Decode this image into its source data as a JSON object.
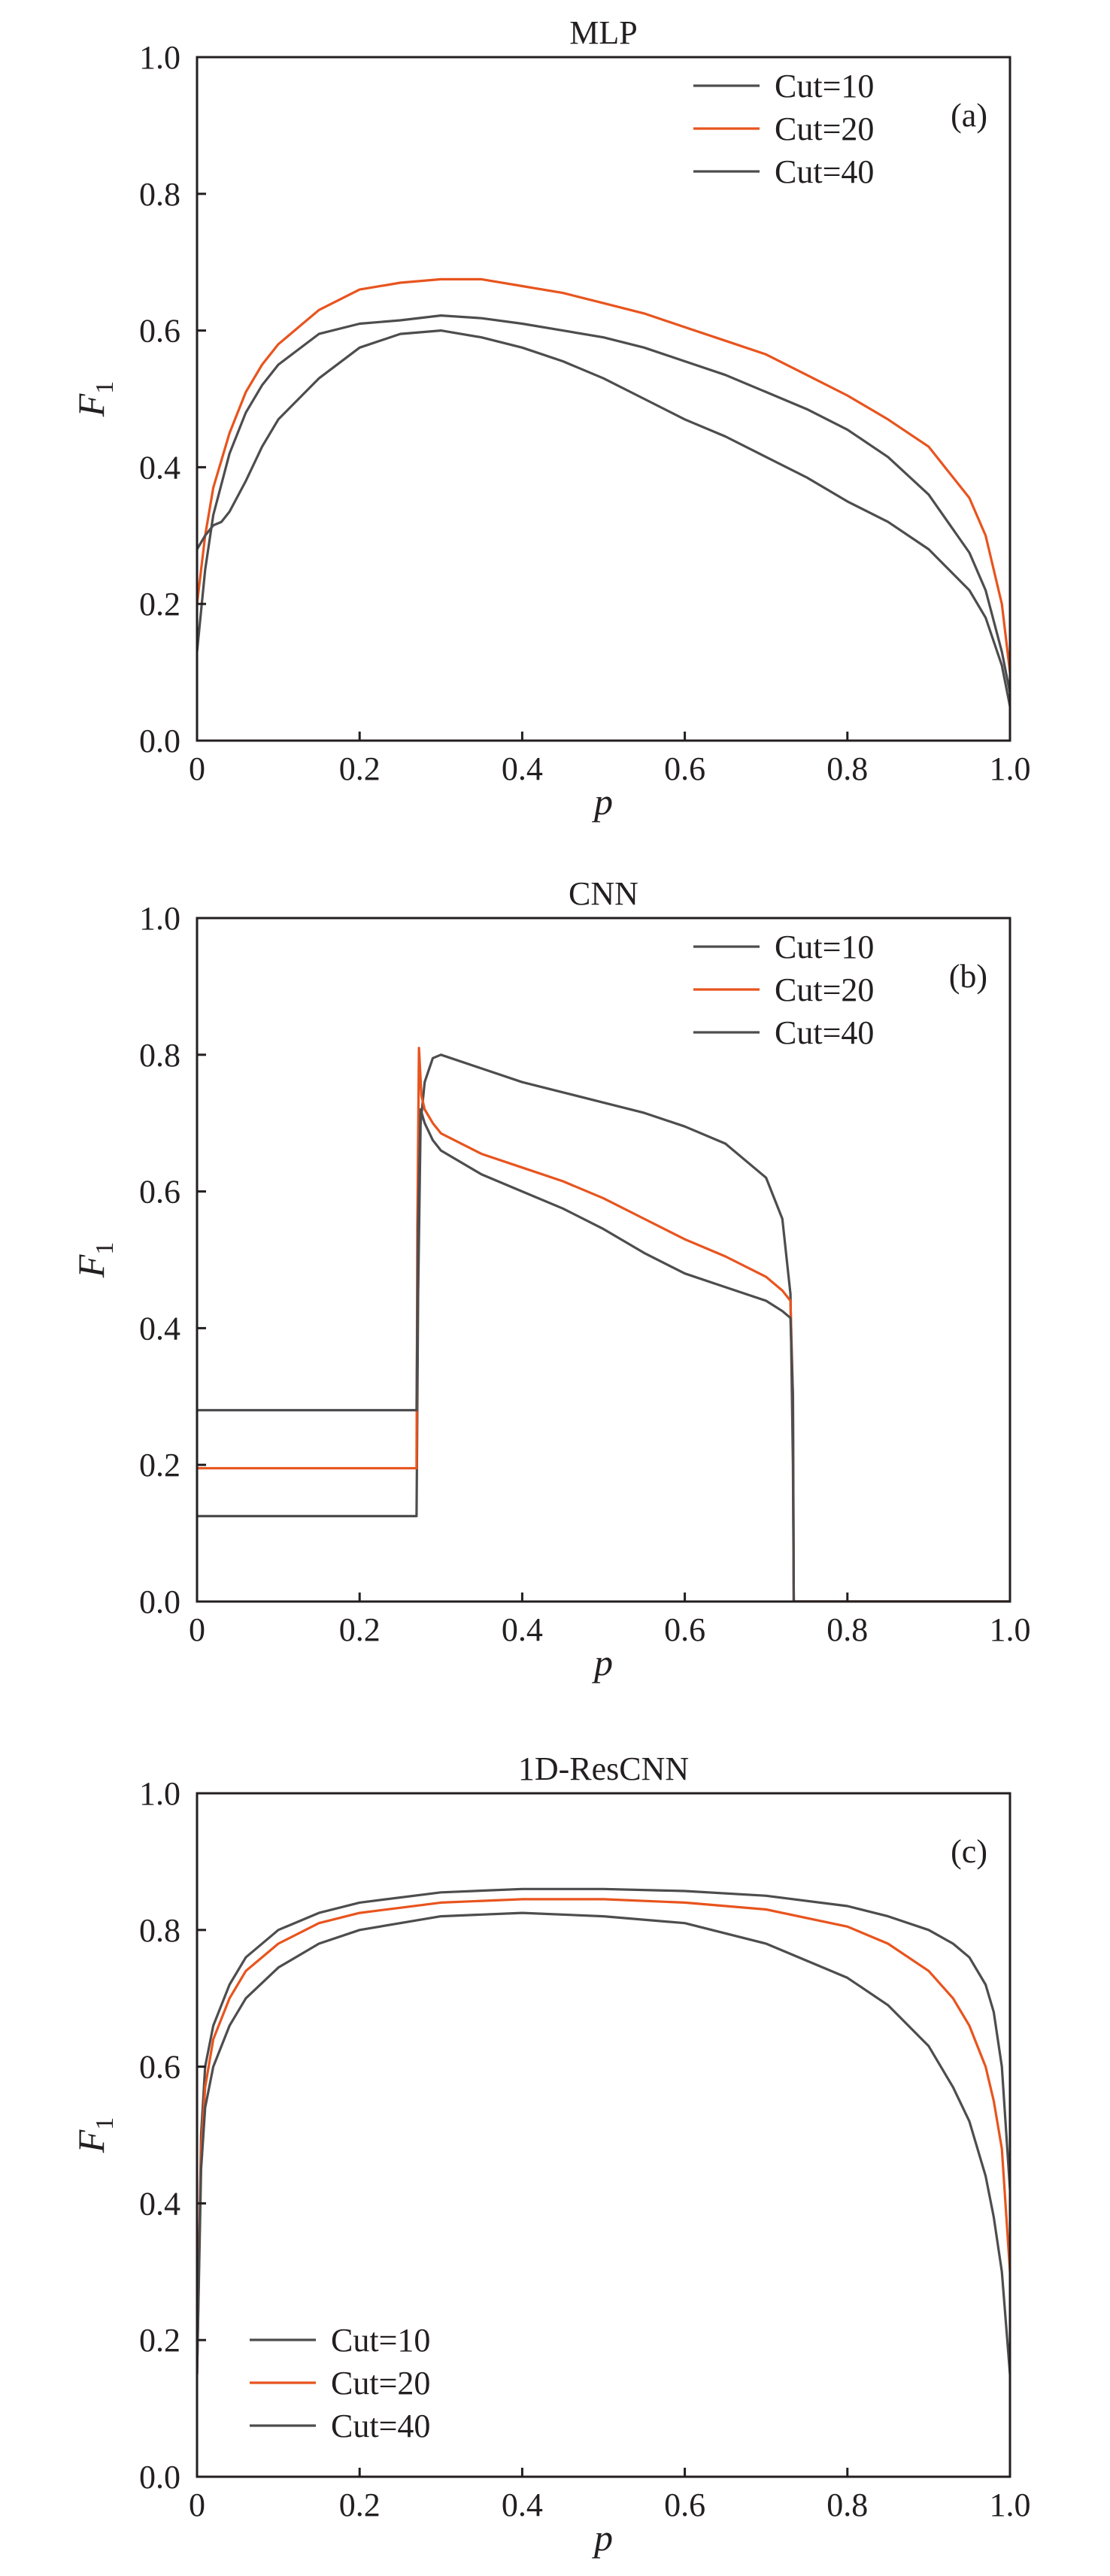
{
  "chart_data": [
    {
      "type": "line",
      "title": "MLP",
      "panel_label": "(a)",
      "xlabel": "p",
      "ylabel_base": "F",
      "ylabel_sub": "1",
      "xlim": [
        0,
        1
      ],
      "ylim": [
        0,
        1
      ],
      "xticks": [
        "0",
        "0.2",
        "0.4",
        "0.6",
        "0.8",
        "1.0"
      ],
      "yticks": [
        "0.0",
        "0.2",
        "0.4",
        "0.6",
        "0.8",
        "1.0"
      ],
      "legend_position": "top-right",
      "series": [
        {
          "name": "Cut=10",
          "color": "#4d4d4f",
          "x": [
            0,
            0.01,
            0.02,
            0.04,
            0.06,
            0.08,
            0.1,
            0.15,
            0.2,
            0.25,
            0.3,
            0.35,
            0.4,
            0.45,
            0.5,
            0.55,
            0.6,
            0.65,
            0.7,
            0.75,
            0.8,
            0.85,
            0.9,
            0.95,
            0.97,
            0.99,
            1.0
          ],
          "y": [
            0.13,
            0.25,
            0.33,
            0.42,
            0.48,
            0.52,
            0.55,
            0.595,
            0.61,
            0.615,
            0.622,
            0.618,
            0.61,
            0.6,
            0.59,
            0.575,
            0.555,
            0.535,
            0.51,
            0.485,
            0.455,
            0.415,
            0.36,
            0.275,
            0.22,
            0.13,
            0.07
          ]
        },
        {
          "name": "Cut=20",
          "color": "#e8541e",
          "x": [
            0,
            0.01,
            0.02,
            0.04,
            0.06,
            0.08,
            0.1,
            0.15,
            0.2,
            0.25,
            0.3,
            0.35,
            0.4,
            0.45,
            0.5,
            0.55,
            0.6,
            0.65,
            0.7,
            0.75,
            0.8,
            0.85,
            0.9,
            0.95,
            0.97,
            0.99,
            1.0
          ],
          "y": [
            0.2,
            0.3,
            0.37,
            0.45,
            0.51,
            0.55,
            0.58,
            0.63,
            0.66,
            0.67,
            0.675,
            0.675,
            0.665,
            0.655,
            0.64,
            0.625,
            0.605,
            0.585,
            0.565,
            0.535,
            0.505,
            0.47,
            0.43,
            0.355,
            0.3,
            0.2,
            0.1
          ]
        },
        {
          "name": "Cut=40",
          "color": "#4d4d4f",
          "x": [
            0,
            0.01,
            0.02,
            0.03,
            0.04,
            0.06,
            0.08,
            0.1,
            0.15,
            0.2,
            0.25,
            0.3,
            0.35,
            0.4,
            0.45,
            0.5,
            0.55,
            0.6,
            0.65,
            0.7,
            0.75,
            0.8,
            0.85,
            0.9,
            0.95,
            0.97,
            0.99,
            1.0
          ],
          "y": [
            0.28,
            0.3,
            0.315,
            0.32,
            0.335,
            0.38,
            0.43,
            0.47,
            0.53,
            0.575,
            0.595,
            0.6,
            0.59,
            0.575,
            0.555,
            0.53,
            0.5,
            0.47,
            0.445,
            0.415,
            0.385,
            0.35,
            0.32,
            0.28,
            0.22,
            0.18,
            0.11,
            0.05
          ]
        }
      ]
    },
    {
      "type": "line",
      "title": "CNN",
      "panel_label": "(b)",
      "xlabel": "p",
      "ylabel_base": "F",
      "ylabel_sub": "1",
      "xlim": [
        0,
        1
      ],
      "ylim": [
        0,
        1
      ],
      "xticks": [
        "0",
        "0.2",
        "0.4",
        "0.6",
        "0.8",
        "1.0"
      ],
      "yticks": [
        "0.0",
        "0.2",
        "0.4",
        "0.6",
        "0.8",
        "1.0"
      ],
      "legend_position": "top-right",
      "series": [
        {
          "name": "Cut=10",
          "color": "#4d4d4f",
          "x": [
            0,
            0.27,
            0.272,
            0.275,
            0.28,
            0.29,
            0.3,
            0.35,
            0.4,
            0.45,
            0.5,
            0.55,
            0.6,
            0.65,
            0.7,
            0.72,
            0.73,
            0.733,
            0.734,
            1.0
          ],
          "y": [
            0.125,
            0.125,
            0.45,
            0.7,
            0.76,
            0.795,
            0.8,
            0.78,
            0.76,
            0.745,
            0.73,
            0.715,
            0.695,
            0.67,
            0.62,
            0.56,
            0.45,
            0.2,
            0.0,
            0.0
          ]
        },
        {
          "name": "Cut=20",
          "color": "#e8541e",
          "x": [
            0,
            0.27,
            0.271,
            0.273,
            0.276,
            0.28,
            0.29,
            0.3,
            0.35,
            0.4,
            0.45,
            0.5,
            0.55,
            0.6,
            0.65,
            0.7,
            0.72,
            0.73,
            0.733,
            0.734,
            1.0
          ],
          "y": [
            0.195,
            0.195,
            0.55,
            0.81,
            0.74,
            0.72,
            0.7,
            0.685,
            0.655,
            0.635,
            0.615,
            0.59,
            0.56,
            0.53,
            0.505,
            0.475,
            0.455,
            0.44,
            0.3,
            0.0,
            0.0
          ]
        },
        {
          "name": "Cut=40",
          "color": "#4d4d4f",
          "x": [
            0,
            0.27,
            0.272,
            0.275,
            0.28,
            0.29,
            0.3,
            0.35,
            0.4,
            0.45,
            0.5,
            0.55,
            0.6,
            0.65,
            0.7,
            0.72,
            0.73,
            0.733,
            0.734,
            1.0
          ],
          "y": [
            0.28,
            0.28,
            0.55,
            0.72,
            0.7,
            0.675,
            0.66,
            0.625,
            0.6,
            0.575,
            0.545,
            0.51,
            0.48,
            0.46,
            0.44,
            0.425,
            0.415,
            0.3,
            0.0,
            0.0
          ]
        }
      ]
    },
    {
      "type": "line",
      "title": "1D-ResCNN",
      "panel_label": "(c)",
      "xlabel": "p",
      "ylabel_base": "F",
      "ylabel_sub": "1",
      "xlim": [
        0,
        1
      ],
      "ylim": [
        0,
        1
      ],
      "xticks": [
        "0",
        "0.2",
        "0.4",
        "0.6",
        "0.8",
        "1.0"
      ],
      "yticks": [
        "0.0",
        "0.2",
        "0.4",
        "0.6",
        "0.8",
        "1.0"
      ],
      "legend_position": "bottom-left",
      "series": [
        {
          "name": "Cut=10",
          "color": "#4d4d4f",
          "x": [
            0,
            0.005,
            0.01,
            0.02,
            0.04,
            0.06,
            0.1,
            0.15,
            0.2,
            0.3,
            0.4,
            0.5,
            0.6,
            0.7,
            0.8,
            0.85,
            0.9,
            0.93,
            0.95,
            0.97,
            0.98,
            0.99,
            1.0
          ],
          "y": [
            0.15,
            0.5,
            0.6,
            0.66,
            0.72,
            0.76,
            0.8,
            0.825,
            0.84,
            0.855,
            0.86,
            0.86,
            0.857,
            0.85,
            0.835,
            0.82,
            0.8,
            0.78,
            0.76,
            0.72,
            0.68,
            0.6,
            0.42
          ]
        },
        {
          "name": "Cut=20",
          "color": "#e8541e",
          "x": [
            0,
            0.005,
            0.01,
            0.02,
            0.04,
            0.06,
            0.1,
            0.15,
            0.2,
            0.3,
            0.4,
            0.5,
            0.6,
            0.7,
            0.8,
            0.85,
            0.9,
            0.93,
            0.95,
            0.97,
            0.98,
            0.99,
            1.0
          ],
          "y": [
            0.15,
            0.48,
            0.57,
            0.64,
            0.7,
            0.74,
            0.78,
            0.81,
            0.825,
            0.84,
            0.845,
            0.845,
            0.84,
            0.83,
            0.805,
            0.78,
            0.74,
            0.7,
            0.66,
            0.6,
            0.55,
            0.48,
            0.3
          ]
        },
        {
          "name": "Cut=40",
          "color": "#4d4d4f",
          "x": [
            0,
            0.005,
            0.01,
            0.02,
            0.04,
            0.06,
            0.1,
            0.15,
            0.2,
            0.3,
            0.4,
            0.5,
            0.6,
            0.7,
            0.8,
            0.85,
            0.9,
            0.93,
            0.95,
            0.97,
            0.98,
            0.99,
            1.0
          ],
          "y": [
            0.15,
            0.45,
            0.54,
            0.6,
            0.66,
            0.7,
            0.745,
            0.78,
            0.8,
            0.82,
            0.825,
            0.82,
            0.81,
            0.78,
            0.73,
            0.69,
            0.63,
            0.57,
            0.52,
            0.44,
            0.38,
            0.3,
            0.15
          ]
        }
      ]
    }
  ]
}
